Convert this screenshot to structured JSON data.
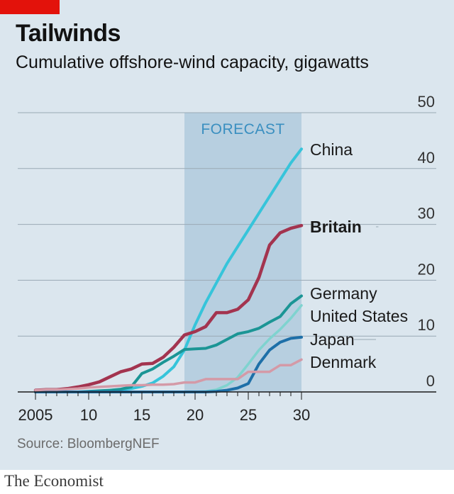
{
  "header": {
    "title": "Tailwinds",
    "subtitle": "Cumulative offshore-wind capacity, gigawatts"
  },
  "source": "Source: BloombergNEF",
  "footer": "The Economist",
  "colors": {
    "background": "#dbe6ee",
    "forecast_band": "#b7cfe0",
    "accent_red": "#e3120b"
  },
  "chart_data": {
    "type": "line",
    "title": "Tailwinds",
    "subtitle": "Cumulative offshore-wind capacity, gigawatts",
    "xlim": [
      2005,
      2030
    ],
    "ylim": [
      0,
      50
    ],
    "x_ticks": [
      2005,
      2010,
      2015,
      2020,
      2025,
      2030
    ],
    "x_tick_labels": [
      "2005",
      "10",
      "15",
      "20",
      "25",
      "30"
    ],
    "y_ticks": [
      0,
      10,
      20,
      30,
      40,
      50
    ],
    "y_tick_labels": [
      "0",
      "10",
      "20",
      "30",
      "40",
      "50"
    ],
    "y_axis_side": "right",
    "grid": "horizontal",
    "forecast": {
      "label": "FORECAST",
      "from": 2019,
      "to": 2030
    },
    "x": [
      2005,
      2006,
      2007,
      2008,
      2009,
      2010,
      2011,
      2012,
      2013,
      2014,
      2015,
      2016,
      2017,
      2018,
      2019,
      2020,
      2021,
      2022,
      2023,
      2024,
      2025,
      2026,
      2027,
      2028,
      2029,
      2030
    ],
    "series": [
      {
        "name": "China",
        "color": "#36c4da",
        "width": 4,
        "values": [
          0,
          0,
          0,
          0,
          0,
          0,
          0.1,
          0.3,
          0.4,
          0.6,
          1.0,
          1.6,
          2.8,
          4.5,
          7.5,
          12,
          16,
          19.5,
          23,
          26,
          29,
          32,
          35,
          38,
          41,
          43.5
        ]
      },
      {
        "name": "Britain",
        "color": "#a3344f",
        "width": 4.5,
        "bold": true,
        "values": [
          0.3,
          0.4,
          0.4,
          0.6,
          0.9,
          1.3,
          1.8,
          2.7,
          3.6,
          4.1,
          5.0,
          5.1,
          6.2,
          8.0,
          10.2,
          10.8,
          11.7,
          14.2,
          14.2,
          14.8,
          16.5,
          20.5,
          26.3,
          28.5,
          29.3,
          29.8
        ]
      },
      {
        "name": "Germany",
        "color": "#1b9595",
        "width": 4,
        "values": [
          0,
          0,
          0,
          0,
          0,
          0.1,
          0.2,
          0.3,
          0.5,
          0.9,
          3.3,
          4.1,
          5.3,
          6.4,
          7.6,
          7.7,
          7.8,
          8.4,
          9.4,
          10.4,
          10.8,
          11.4,
          12.5,
          13.5,
          15.8,
          17.2
        ]
      },
      {
        "name": "United States",
        "color": "#7fd3cf",
        "width": 3.5,
        "values": [
          0,
          0,
          0,
          0,
          0,
          0,
          0,
          0,
          0,
          0,
          0,
          0,
          0,
          0,
          0,
          0,
          0.1,
          0.4,
          1.2,
          2.6,
          5.0,
          7.5,
          9.5,
          11.2,
          13.2,
          15.5
        ]
      },
      {
        "name": "Japan",
        "color": "#1d6fa8",
        "width": 4,
        "values": [
          0,
          0,
          0,
          0,
          0,
          0,
          0,
          0,
          0,
          0,
          0,
          0,
          0,
          0,
          0,
          0,
          0,
          0.1,
          0.3,
          0.7,
          1.5,
          5.0,
          7.5,
          8.9,
          9.6,
          9.8
        ]
      },
      {
        "name": "Denmark",
        "color": "#d49aa7",
        "width": 3.5,
        "values": [
          0.3,
          0.4,
          0.4,
          0.5,
          0.6,
          0.8,
          0.9,
          1.0,
          1.1,
          1.2,
          1.2,
          1.3,
          1.3,
          1.4,
          1.7,
          1.7,
          2.3,
          2.3,
          2.3,
          2.3,
          3.6,
          3.6,
          3.6,
          4.8,
          4.8,
          5.8
        ]
      }
    ]
  }
}
